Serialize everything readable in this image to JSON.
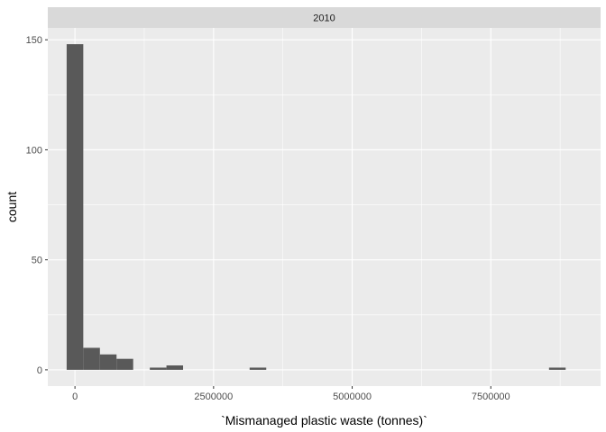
{
  "chart_data": {
    "type": "bar",
    "subtype": "histogram",
    "facet_label": "2010",
    "xlabel": "`Mismanaged plastic waste (tonnes)`",
    "ylabel": "count",
    "xlim": [
      -490000,
      9480000
    ],
    "ylim": [
      -7.4,
      155.4
    ],
    "x_ticks": [
      0,
      2500000,
      5000000,
      7500000
    ],
    "x_tick_labels": [
      "0",
      "2500000",
      "5000000",
      "7500000"
    ],
    "y_ticks": [
      0,
      50,
      100,
      150
    ],
    "y_tick_labels": [
      "0",
      "50",
      "100",
      "150"
    ],
    "bin_width": 300000,
    "bins": [
      {
        "x0": -150000,
        "x1": 150000,
        "count": 148
      },
      {
        "x0": 150000,
        "x1": 450000,
        "count": 10
      },
      {
        "x0": 450000,
        "x1": 750000,
        "count": 7
      },
      {
        "x0": 750000,
        "x1": 1050000,
        "count": 5
      },
      {
        "x0": 1350000,
        "x1": 1650000,
        "count": 1
      },
      {
        "x0": 1650000,
        "x1": 1950000,
        "count": 2
      },
      {
        "x0": 3150000,
        "x1": 3450000,
        "count": 1
      },
      {
        "x0": 8550000,
        "x1": 8850000,
        "count": 1
      }
    ],
    "grid": true,
    "colors": {
      "panel": "#EBEBEB",
      "grid_major": "#FFFFFF",
      "bar_fill": "#595959",
      "strip": "#D9D9D9"
    }
  }
}
